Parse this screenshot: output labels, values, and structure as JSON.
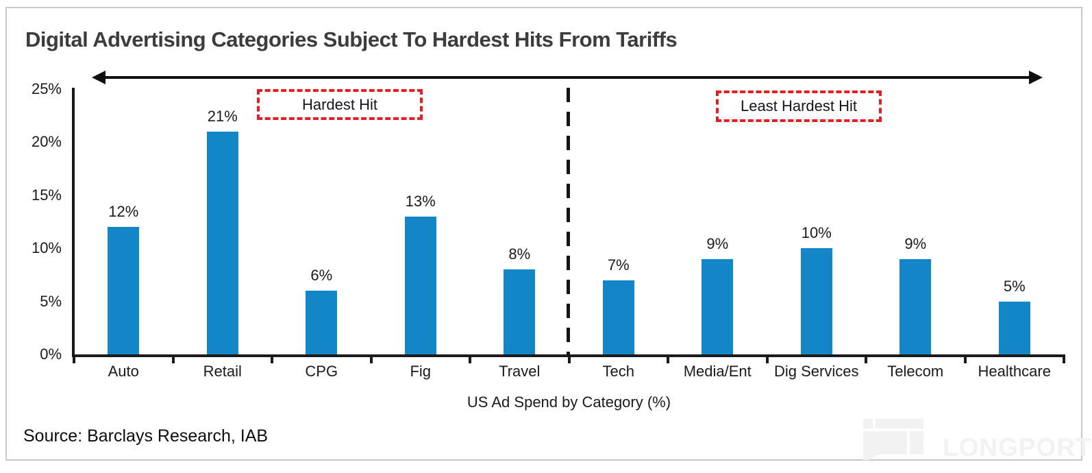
{
  "chart_data": {
    "type": "bar",
    "title": "Digital Advertising Categories Subject To Hardest Hits From Tariffs",
    "categories": [
      "Auto",
      "Retail",
      "CPG",
      "Fig",
      "Travel",
      "Tech",
      "Media/Ent",
      "Dig Services",
      "Telecom",
      "Healthcare"
    ],
    "values": [
      12,
      21,
      6,
      13,
      8,
      7,
      9,
      10,
      9,
      5
    ],
    "data_labels": [
      "12%",
      "21%",
      "6%",
      "13%",
      "8%",
      "7%",
      "9%",
      "10%",
      "9%",
      "5%"
    ],
    "xlabel": "US Ad Spend by Category (%)",
    "ylabel": "",
    "ylim": [
      0,
      25
    ],
    "ytick_step": 5,
    "ytick_labels": [
      "0%",
      "5%",
      "10%",
      "15%",
      "20%",
      "25%"
    ],
    "grid": false,
    "legend": null,
    "bar_color": "#1286c6",
    "groups": [
      {
        "label": "Hardest Hit",
        "categories": [
          "Auto",
          "Retail",
          "CPG",
          "Fig",
          "Travel"
        ]
      },
      {
        "label": "Least Hardest Hit",
        "categories": [
          "Tech",
          "Media/Ent",
          "Dig Services",
          "Telecom",
          "Healthcare"
        ]
      }
    ],
    "divider_after_category": "Travel"
  },
  "footer": {
    "source": "Source: Barclays Research, IAB",
    "watermark_text": "LONGPORT"
  },
  "colors": {
    "bar": "#1286c6",
    "annotation_red": "#e41e20",
    "title_text": "#3c3c3c",
    "axis_text": "#1a1a1a",
    "frame_border": "#c8c8c8",
    "watermark": "#f2f2f2"
  }
}
